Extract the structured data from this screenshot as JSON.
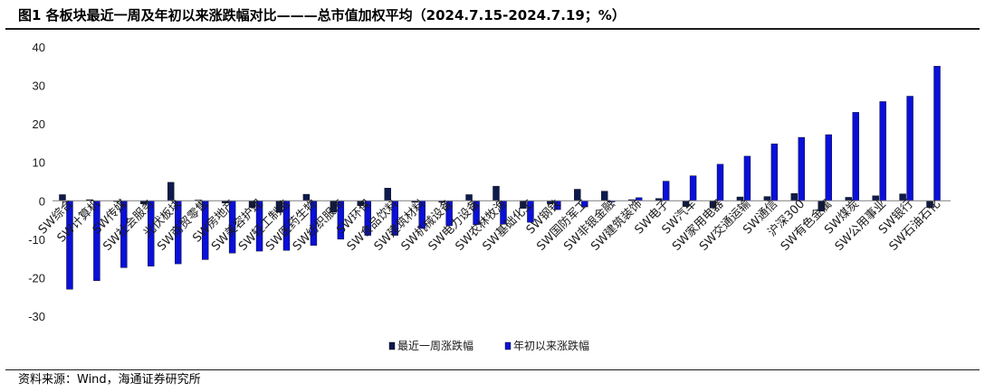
{
  "figure": {
    "title": "图1  各板块最近一周及年初以来涨跌幅对比———总市值加权平均（2024.7.15-2024.7.19；%）",
    "source": "资料来源：Wind，海通证券研究所"
  },
  "colors": {
    "week_series": "#0d1a4d",
    "ytd_series": "#0a10d8",
    "axis": "#7f7f7f",
    "rule": "#1a1a1a"
  },
  "chart_data": {
    "type": "bar",
    "title": "",
    "xlabel": "",
    "ylabel": "",
    "ylim": [
      -30,
      40
    ],
    "yticks": [
      40,
      30,
      20,
      10,
      0,
      -10,
      -20,
      -30
    ],
    "grid": false,
    "legend_position": "bottom-center",
    "categories": [
      "SW综合",
      "SW计算机",
      "SW传媒",
      "SW社会服务",
      "光伏板块",
      "SW商贸零售",
      "SW房地产",
      "SW美容护理",
      "SW轻工制造",
      "SW医药生物",
      "SW纺织服饰",
      "SW环保",
      "SW食品饮料",
      "SW建筑材料",
      "SW机械设备",
      "SW电力设备",
      "SW农林牧渔",
      "SW基础化工",
      "SW钢铁",
      "SW国防军工",
      "SW非银金融",
      "SW建筑装饰",
      "SW电子",
      "SW汽车",
      "SW家用电器",
      "SW交通运输",
      "SW通信",
      "沪深300",
      "SW有色金属",
      "SW煤炭",
      "SW公用事业",
      "SW银行",
      "SW石油石化"
    ],
    "series": [
      {
        "name": "最近一周涨跌幅",
        "values": [
          1.6,
          0.3,
          -0.2,
          -0.8,
          4.8,
          0.2,
          -0.6,
          -1.8,
          -3.0,
          1.7,
          -3.0,
          -1.3,
          3.3,
          -0.4,
          -0.4,
          1.6,
          3.8,
          -2.0,
          -0.8,
          3.0,
          2.5,
          0.3,
          0.6,
          -1.5,
          -1.9,
          1.0,
          1.1,
          1.9,
          -2.7,
          0.9,
          1.3,
          1.8,
          -1.8
        ]
      },
      {
        "name": "年初以来涨跌幅",
        "values": [
          -23.0,
          -20.8,
          -17.4,
          -17.0,
          -16.4,
          -15.3,
          -13.6,
          -13.1,
          -12.9,
          -11.6,
          -10.0,
          -9.0,
          -9.0,
          -7.2,
          -6.5,
          -6.2,
          -6.1,
          -5.6,
          -2.3,
          -1.6,
          -0.3,
          0.8,
          5.1,
          6.5,
          9.5,
          11.6,
          14.8,
          16.5,
          17.2,
          23.0,
          25.8,
          27.2,
          35.0
        ]
      }
    ]
  }
}
